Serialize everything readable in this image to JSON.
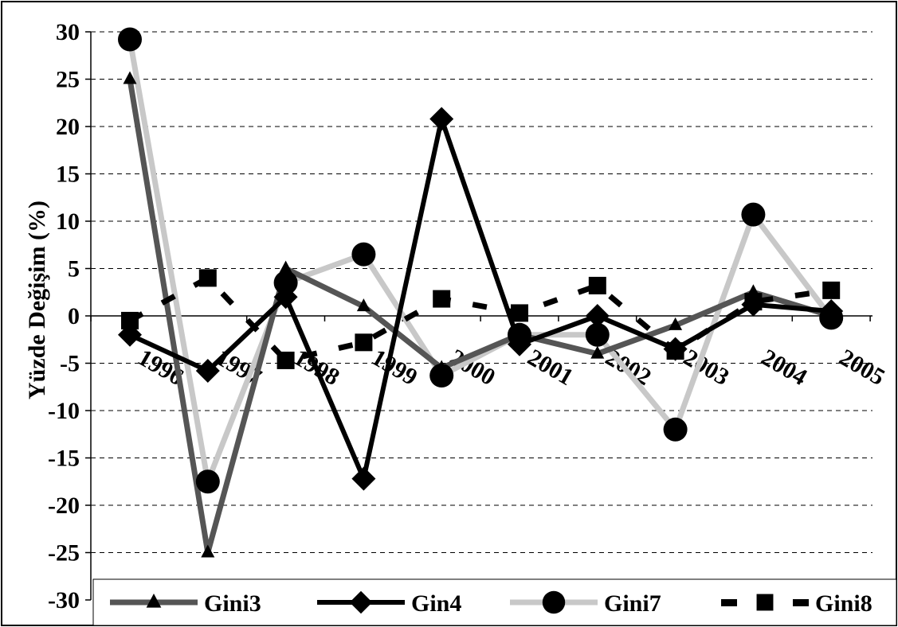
{
  "chart_data": {
    "type": "line",
    "title": "",
    "xlabel": "",
    "ylabel": "Yüzde Değişim (%)",
    "ylim": [
      -30,
      30
    ],
    "yticks": [
      30,
      25,
      20,
      15,
      10,
      5,
      0,
      -5,
      -10,
      -15,
      -20,
      -25,
      -30
    ],
    "categories": [
      "1996",
      "1997",
      "1998",
      "1999",
      "2000",
      "2001",
      "2002",
      "2003",
      "2004",
      "2005"
    ],
    "grid": "horizontal-dashed",
    "legend_position": "bottom",
    "series": [
      {
        "name": "Gini3",
        "marker": "triangle",
        "color": "#555555",
        "style": "solid",
        "values": [
          25,
          -25,
          5,
          1,
          -5.5,
          -2,
          -4,
          -1,
          2.5,
          0
        ]
      },
      {
        "name": "Gin4",
        "marker": "diamond",
        "color": "#000000",
        "style": "solid",
        "values": [
          -2,
          -5.8,
          2,
          -17.2,
          20.8,
          -3,
          0,
          -3.5,
          1.2,
          0.5
        ]
      },
      {
        "name": "Gini7",
        "marker": "circle",
        "color": "#c8c8c8",
        "style": "solid",
        "values": [
          29.2,
          -17.5,
          3.5,
          6.5,
          -6.3,
          -2,
          -2,
          -12,
          10.7,
          -0.2
        ]
      },
      {
        "name": "Gini8",
        "marker": "square",
        "color": "#000000",
        "style": "dashed",
        "values": [
          -0.5,
          4,
          -4.7,
          -2.8,
          1.8,
          0.3,
          3.2,
          -3.7,
          1.5,
          2.7
        ]
      }
    ]
  }
}
